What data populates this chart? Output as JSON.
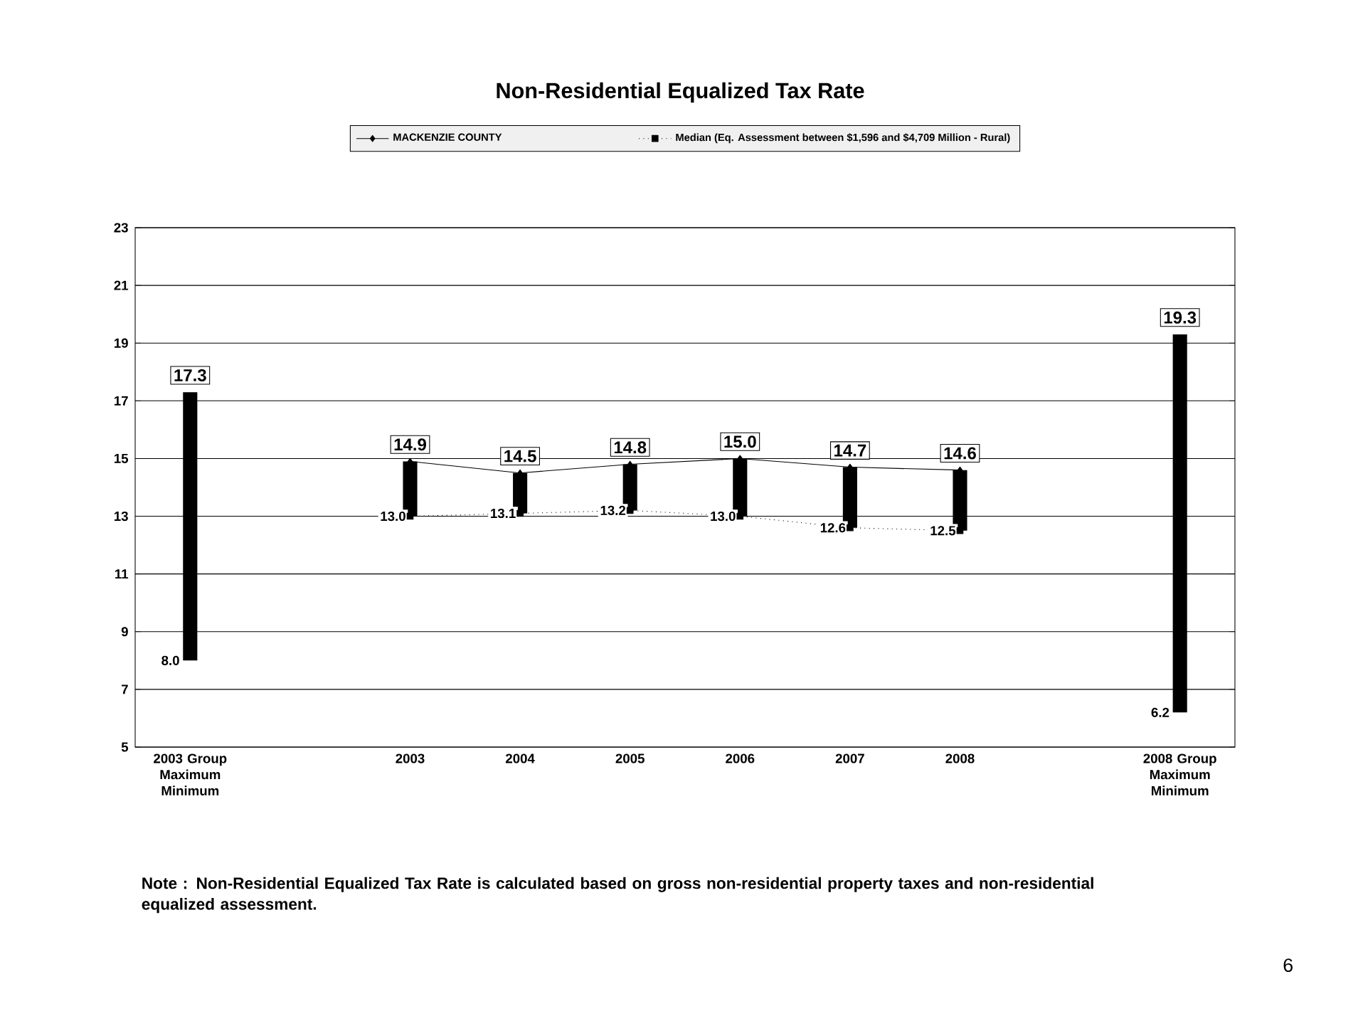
{
  "chart_data": {
    "type": "line",
    "title": "Non-Residential Equalized Tax Rate",
    "categories": [
      "2003 Group Maximum Minimum",
      null,
      "2003",
      "2004",
      "2005",
      "2006",
      "2007",
      "2008",
      null,
      "2008 Group Maximum Minimum"
    ],
    "series": [
      {
        "type": "bar",
        "color": "#000000",
        "base": [
          8.0,
          null,
          13.0,
          13.1,
          13.2,
          13.0,
          12.6,
          12.5,
          null,
          6.2
        ],
        "values": [
          9.3,
          null,
          1.9,
          1.4,
          1.6,
          2.0,
          2.1,
          2.1,
          null,
          13.1
        ]
      },
      {
        "name": "MACKENZIE COUNTY",
        "color": "#000000",
        "marker": "diamond",
        "line_style": "solid",
        "values": [
          null,
          null,
          14.9,
          14.5,
          14.8,
          15.0,
          14.7,
          14.6,
          null,
          null
        ],
        "value_labels": [
          null,
          null,
          "14.9",
          "14.5",
          "14.8",
          "15.0",
          "14.7",
          "14.6",
          null,
          null
        ]
      },
      {
        "name": "Median (Eq. Assessment between $1,596 and $4,709 Million - Rural)",
        "color": "#000000",
        "marker": "square",
        "line_style": "dotted",
        "values": [
          null,
          null,
          13.0,
          13.1,
          13.2,
          13.0,
          12.6,
          12.5,
          null,
          null
        ],
        "value_labels": [
          null,
          null,
          "13.0",
          "13.1",
          "13.2",
          "13.0",
          "12.6",
          "12.5",
          null,
          null
        ]
      }
    ],
    "ylim": [
      5,
      23
    ],
    "yticks": [
      5,
      7,
      9,
      11,
      13,
      15,
      17,
      19,
      21,
      23
    ],
    "grid": "y",
    "legend": "top",
    "annotations": [
      {
        "text": "17.3",
        "x": "2003 Group Maximum Minimum",
        "y": 17.3
      },
      {
        "text": "8.0",
        "x": "2003 Group Maximum Minimum",
        "y": 8.0
      },
      {
        "text": "19.3",
        "x": "2008 Group Maximum Minimum",
        "y": 19.3
      },
      {
        "text": "6.2",
        "x": "2008 Group Maximum Minimum",
        "y": 6.2
      },
      "Note : Non-Residential Equalized Tax Rate is calculated based on gross non-residential property taxes and non-residential equalized assessment.",
      "6"
    ]
  }
}
